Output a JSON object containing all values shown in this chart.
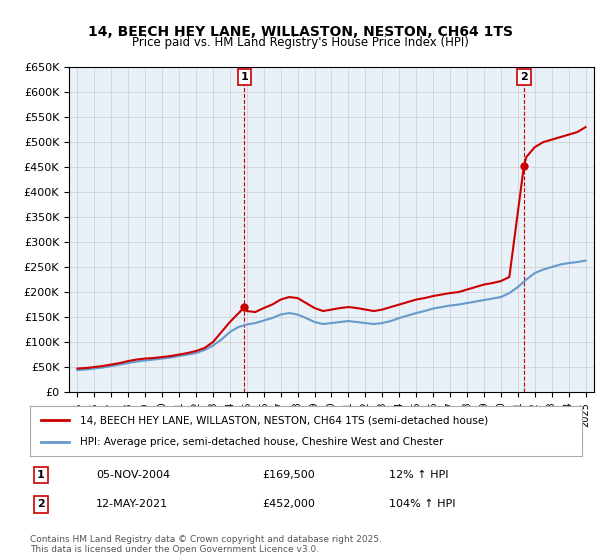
{
  "title": "14, BEECH HEY LANE, WILLASTON, NESTON, CH64 1TS",
  "subtitle": "Price paid vs. HM Land Registry's House Price Index (HPI)",
  "legend_label_red": "14, BEECH HEY LANE, WILLASTON, NESTON, CH64 1TS (semi-detached house)",
  "legend_label_blue": "HPI: Average price, semi-detached house, Cheshire West and Chester",
  "footer": "Contains HM Land Registry data © Crown copyright and database right 2025.\nThis data is licensed under the Open Government Licence v3.0.",
  "annotation1_label": "1",
  "annotation1_date": "05-NOV-2004",
  "annotation1_price": "£169,500",
  "annotation1_hpi": "12% ↑ HPI",
  "annotation1_year": 2004.85,
  "annotation2_label": "2",
  "annotation2_date": "12-MAY-2021",
  "annotation2_price": "£452,000",
  "annotation2_hpi": "104% ↑ HPI",
  "annotation2_year": 2021.36,
  "red_color": "#cc0000",
  "blue_color": "#6699cc",
  "background_color": "#ffffff",
  "grid_color": "#cccccc",
  "ylim": [
    0,
    650000
  ],
  "yticks": [
    0,
    50000,
    100000,
    150000,
    200000,
    250000,
    300000,
    350000,
    400000,
    450000,
    500000,
    550000,
    600000,
    650000
  ],
  "red_x": [
    1995.0,
    1995.5,
    1996.0,
    1996.5,
    1997.0,
    1997.5,
    1998.0,
    1998.5,
    1999.0,
    1999.5,
    2000.0,
    2000.5,
    2001.0,
    2001.5,
    2002.0,
    2002.5,
    2003.0,
    2003.5,
    2004.0,
    2004.85,
    2005.0,
    2005.5,
    2006.0,
    2006.5,
    2007.0,
    2007.5,
    2008.0,
    2008.5,
    2009.0,
    2009.5,
    2010.0,
    2010.5,
    2011.0,
    2011.5,
    2012.0,
    2012.5,
    2013.0,
    2013.5,
    2014.0,
    2014.5,
    2015.0,
    2015.5,
    2016.0,
    2016.5,
    2017.0,
    2017.5,
    2018.0,
    2018.5,
    2019.0,
    2019.5,
    2020.0,
    2020.5,
    2021.36,
    2021.5,
    2022.0,
    2022.5,
    2023.0,
    2023.5,
    2024.0,
    2024.5,
    2025.0
  ],
  "red_y": [
    47000,
    48000,
    50000,
    52000,
    55000,
    58000,
    62000,
    65000,
    67000,
    68000,
    70000,
    72000,
    75000,
    78000,
    82000,
    88000,
    100000,
    120000,
    140000,
    169500,
    162000,
    160000,
    168000,
    175000,
    185000,
    190000,
    188000,
    178000,
    168000,
    162000,
    165000,
    168000,
    170000,
    168000,
    165000,
    162000,
    165000,
    170000,
    175000,
    180000,
    185000,
    188000,
    192000,
    195000,
    198000,
    200000,
    205000,
    210000,
    215000,
    218000,
    222000,
    230000,
    452000,
    470000,
    490000,
    500000,
    505000,
    510000,
    515000,
    520000,
    530000
  ],
  "blue_x": [
    1995.0,
    1995.5,
    1996.0,
    1996.5,
    1997.0,
    1997.5,
    1998.0,
    1998.5,
    1999.0,
    1999.5,
    2000.0,
    2000.5,
    2001.0,
    2001.5,
    2002.0,
    2002.5,
    2003.0,
    2003.5,
    2004.0,
    2004.5,
    2005.0,
    2005.5,
    2006.0,
    2006.5,
    2007.0,
    2007.5,
    2008.0,
    2008.5,
    2009.0,
    2009.5,
    2010.0,
    2010.5,
    2011.0,
    2011.5,
    2012.0,
    2012.5,
    2013.0,
    2013.5,
    2014.0,
    2014.5,
    2015.0,
    2015.5,
    2016.0,
    2016.5,
    2017.0,
    2017.5,
    2018.0,
    2018.5,
    2019.0,
    2019.5,
    2020.0,
    2020.5,
    2021.0,
    2021.5,
    2022.0,
    2022.5,
    2023.0,
    2023.5,
    2024.0,
    2024.5,
    2025.0
  ],
  "blue_y": [
    44000,
    45000,
    47000,
    49000,
    52000,
    55000,
    58000,
    61000,
    63000,
    65000,
    67000,
    69000,
    72000,
    75000,
    78000,
    84000,
    93000,
    105000,
    120000,
    130000,
    135000,
    138000,
    143000,
    148000,
    155000,
    158000,
    155000,
    148000,
    140000,
    136000,
    138000,
    140000,
    142000,
    140000,
    138000,
    136000,
    138000,
    142000,
    148000,
    153000,
    158000,
    162000,
    167000,
    170000,
    173000,
    175000,
    178000,
    181000,
    184000,
    187000,
    190000,
    198000,
    210000,
    225000,
    238000,
    245000,
    250000,
    255000,
    258000,
    260000,
    263000
  ]
}
